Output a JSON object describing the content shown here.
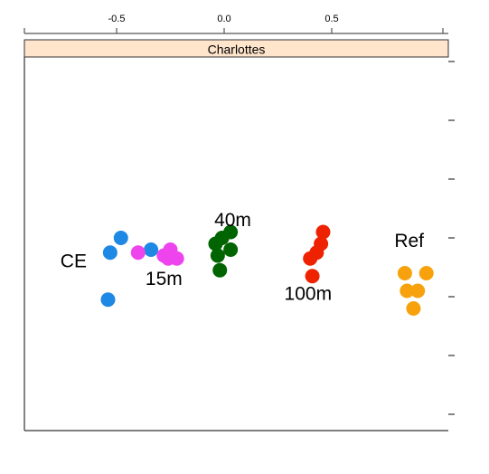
{
  "chart_data": {
    "type": "scatter",
    "panel_title": "Charlottes",
    "x_ticks": [
      "-0.5",
      "0.0",
      "0.5"
    ],
    "x_tick_values": [
      -0.5,
      0.0,
      0.5
    ],
    "xlim": [
      -0.95,
      1.06
    ],
    "ylim": [
      -0.75,
      1.1
    ],
    "y_tick_values": [
      -0.6,
      -0.4,
      -0.2,
      0.0,
      0.2,
      0.4,
      0.6,
      0.8,
      1.0
    ],
    "y_tick_labels_visible": false,
    "grid": false,
    "strip_color": "#ffe5cc",
    "series": [
      {
        "name": "CE",
        "color": "#1e88e5",
        "points": [
          {
            "x": -0.48,
            "y": 0.0
          },
          {
            "x": -0.53,
            "y": -0.05
          },
          {
            "x": -0.34,
            "y": -0.04
          },
          {
            "x": -0.54,
            "y": -0.21
          }
        ]
      },
      {
        "name": "15m",
        "color": "#ee44ee",
        "points": [
          {
            "x": -0.4,
            "y": -0.05
          },
          {
            "x": -0.25,
            "y": -0.04
          },
          {
            "x": -0.26,
            "y": -0.07
          },
          {
            "x": -0.22,
            "y": -0.07
          },
          {
            "x": -0.28,
            "y": -0.06
          }
        ]
      },
      {
        "name": "40m",
        "color": "#006400",
        "points": [
          {
            "x": -0.01,
            "y": 0.0
          },
          {
            "x": 0.03,
            "y": 0.02
          },
          {
            "x": 0.03,
            "y": -0.04
          },
          {
            "x": -0.03,
            "y": -0.06
          },
          {
            "x": -0.02,
            "y": -0.11
          },
          {
            "x": -0.04,
            "y": -0.02
          }
        ]
      },
      {
        "name": "100m",
        "color": "#ee2200",
        "points": [
          {
            "x": 0.46,
            "y": 0.02
          },
          {
            "x": 0.45,
            "y": -0.02
          },
          {
            "x": 0.43,
            "y": -0.05
          },
          {
            "x": 0.4,
            "y": -0.07
          },
          {
            "x": 0.41,
            "y": -0.13
          }
        ]
      },
      {
        "name": "Ref",
        "color": "#f7a20d",
        "points": [
          {
            "x": 0.84,
            "y": -0.12
          },
          {
            "x": 0.94,
            "y": -0.12
          },
          {
            "x": 0.85,
            "y": -0.18
          },
          {
            "x": 0.9,
            "y": -0.18
          },
          {
            "x": 0.88,
            "y": -0.24
          }
        ]
      }
    ],
    "group_labels": [
      {
        "text": "CE",
        "x": -0.7,
        "y": -0.08
      },
      {
        "text": "15m",
        "x": -0.28,
        "y": -0.14
      },
      {
        "text": "40m",
        "x": 0.04,
        "y": 0.06
      },
      {
        "text": "100m",
        "x": 0.39,
        "y": -0.19
      },
      {
        "text": "Ref",
        "x": 0.86,
        "y": -0.01
      }
    ]
  }
}
